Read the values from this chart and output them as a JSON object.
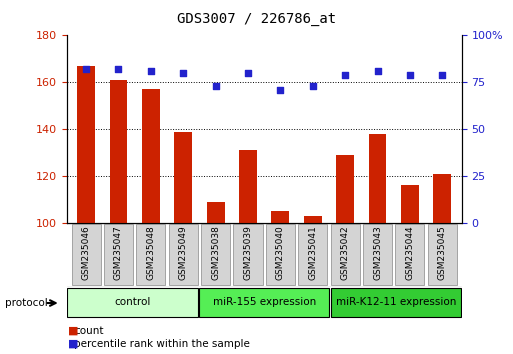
{
  "title": "GDS3007 / 226786_at",
  "samples": [
    "GSM235046",
    "GSM235047",
    "GSM235048",
    "GSM235049",
    "GSM235038",
    "GSM235039",
    "GSM235040",
    "GSM235041",
    "GSM235042",
    "GSM235043",
    "GSM235044",
    "GSM235045"
  ],
  "bar_values": [
    167,
    161,
    157,
    139,
    109,
    131,
    105,
    103,
    129,
    138,
    116,
    121
  ],
  "dot_values": [
    82,
    82,
    81,
    80,
    73,
    80,
    71,
    73,
    79,
    81,
    79,
    79
  ],
  "bar_color": "#cc2200",
  "dot_color": "#2222cc",
  "ylim_left": [
    100,
    180
  ],
  "ylim_right": [
    0,
    100
  ],
  "yticks_left": [
    100,
    120,
    140,
    160,
    180
  ],
  "yticks_right": [
    0,
    25,
    50,
    75,
    100
  ],
  "groups": [
    {
      "label": "control",
      "start": 0,
      "end": 4,
      "color": "#ccffcc"
    },
    {
      "label": "miR-155 expression",
      "start": 4,
      "end": 8,
      "color": "#55ee55"
    },
    {
      "label": "miR-K12-11 expression",
      "start": 8,
      "end": 12,
      "color": "#33cc33"
    }
  ],
  "legend_count_label": "count",
  "legend_pct_label": "percentile rank within the sample",
  "protocol_label": "protocol",
  "tick_color_left": "#cc2200",
  "tick_color_right": "#2222cc"
}
